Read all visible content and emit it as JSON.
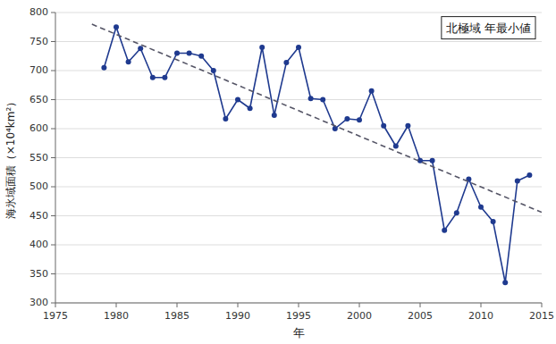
{
  "chart_data": {
    "type": "line",
    "title": "北極域 年最小値",
    "x_label": "年",
    "y_label": "海氷域面積（×10⁴km²）",
    "x": [
      1979,
      1980,
      1981,
      1982,
      1983,
      1984,
      1985,
      1986,
      1987,
      1988,
      1989,
      1990,
      1991,
      1992,
      1993,
      1994,
      1995,
      1996,
      1997,
      1998,
      1999,
      2000,
      2001,
      2002,
      2003,
      2004,
      2005,
      2006,
      2007,
      2008,
      2009,
      2010,
      2011,
      2012,
      2013,
      2014
    ],
    "series": [
      {
        "values": [
          705,
          775,
          715,
          738,
          688,
          688,
          730,
          730,
          725,
          700,
          617,
          650,
          635,
          740,
          623,
          714,
          740,
          652,
          650,
          600,
          617,
          615,
          665,
          605,
          570,
          605,
          545,
          545,
          425,
          455,
          513,
          465,
          440,
          335,
          510,
          520
        ],
        "color": "#1f3a8f",
        "marker": "circle"
      },
      {
        "x": [
          1978,
          2015
        ],
        "values": [
          779.85,
          455.99
        ],
        "color": "#555566",
        "line_style": "dashed"
      }
    ],
    "xlim": [
      1975,
      2015
    ],
    "ylim": [
      300,
      800
    ],
    "xticks": [
      1975,
      1980,
      1985,
      1990,
      1995,
      2000,
      2005,
      2010,
      2015
    ],
    "yticks": [
      300,
      350,
      400,
      450,
      500,
      550,
      600,
      650,
      700,
      750,
      800
    ],
    "grid": true
  }
}
